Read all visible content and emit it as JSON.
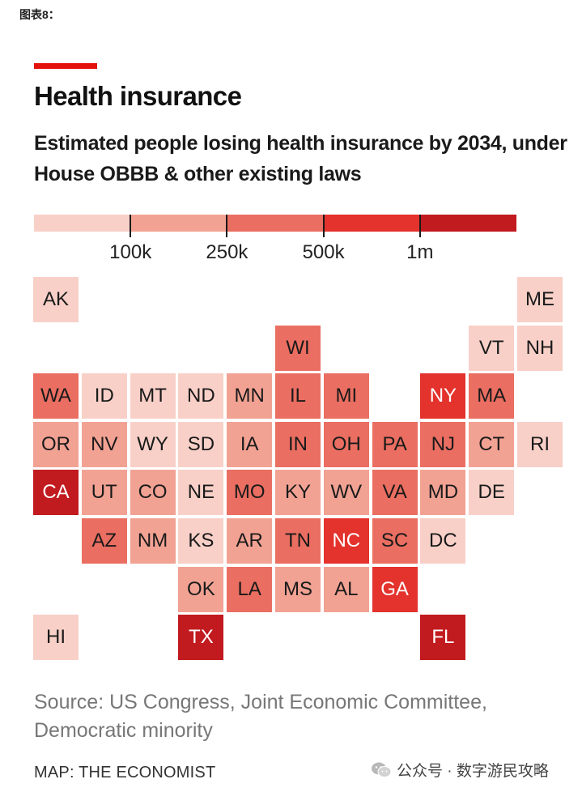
{
  "header": {
    "figure_label": "图表8："
  },
  "chart_data": {
    "type": "heatmap",
    "title": "Health insurance",
    "subtitle": "Estimated people losing health insurance by 2034, under House OBBB & other existing laws",
    "legend": {
      "breaks": [
        "100k",
        "250k",
        "500k",
        "1m"
      ],
      "colors": [
        "#f8d0c8",
        "#f2a293",
        "#ea6e61",
        "#e4322c",
        "#c11a1f"
      ]
    },
    "states": [
      {
        "code": "AK",
        "bin": 0
      },
      {
        "code": "ME",
        "bin": 0
      },
      {
        "code": "WI",
        "bin": 2
      },
      {
        "code": "VT",
        "bin": 0
      },
      {
        "code": "NH",
        "bin": 0
      },
      {
        "code": "WA",
        "bin": 2
      },
      {
        "code": "ID",
        "bin": 0
      },
      {
        "code": "MT",
        "bin": 0
      },
      {
        "code": "ND",
        "bin": 0
      },
      {
        "code": "MN",
        "bin": 1
      },
      {
        "code": "IL",
        "bin": 2
      },
      {
        "code": "MI",
        "bin": 2
      },
      {
        "code": "NY",
        "bin": 3
      },
      {
        "code": "MA",
        "bin": 2
      },
      {
        "code": "OR",
        "bin": 1
      },
      {
        "code": "NV",
        "bin": 1
      },
      {
        "code": "WY",
        "bin": 0
      },
      {
        "code": "SD",
        "bin": 0
      },
      {
        "code": "IA",
        "bin": 1
      },
      {
        "code": "IN",
        "bin": 2
      },
      {
        "code": "OH",
        "bin": 2
      },
      {
        "code": "PA",
        "bin": 2
      },
      {
        "code": "NJ",
        "bin": 2
      },
      {
        "code": "CT",
        "bin": 1
      },
      {
        "code": "RI",
        "bin": 0
      },
      {
        "code": "CA",
        "bin": 4
      },
      {
        "code": "UT",
        "bin": 1
      },
      {
        "code": "CO",
        "bin": 1
      },
      {
        "code": "NE",
        "bin": 0
      },
      {
        "code": "MO",
        "bin": 2
      },
      {
        "code": "KY",
        "bin": 1
      },
      {
        "code": "WV",
        "bin": 1
      },
      {
        "code": "VA",
        "bin": 2
      },
      {
        "code": "MD",
        "bin": 1
      },
      {
        "code": "DE",
        "bin": 0
      },
      {
        "code": "AZ",
        "bin": 2
      },
      {
        "code": "NM",
        "bin": 1
      },
      {
        "code": "KS",
        "bin": 0
      },
      {
        "code": "AR",
        "bin": 1
      },
      {
        "code": "TN",
        "bin": 2
      },
      {
        "code": "NC",
        "bin": 3
      },
      {
        "code": "SC",
        "bin": 2
      },
      {
        "code": "DC",
        "bin": 0
      },
      {
        "code": "OK",
        "bin": 1
      },
      {
        "code": "LA",
        "bin": 2
      },
      {
        "code": "MS",
        "bin": 1
      },
      {
        "code": "AL",
        "bin": 1
      },
      {
        "code": "GA",
        "bin": 3
      },
      {
        "code": "HI",
        "bin": 0
      },
      {
        "code": "TX",
        "bin": 4
      },
      {
        "code": "FL",
        "bin": 4
      }
    ]
  },
  "footer": {
    "source": "Source: US Congress, Joint Economic Committee, Democratic minority",
    "credit": "MAP: THE ECONOMIST",
    "wechat": "公众号 · 数字游民攻略"
  }
}
